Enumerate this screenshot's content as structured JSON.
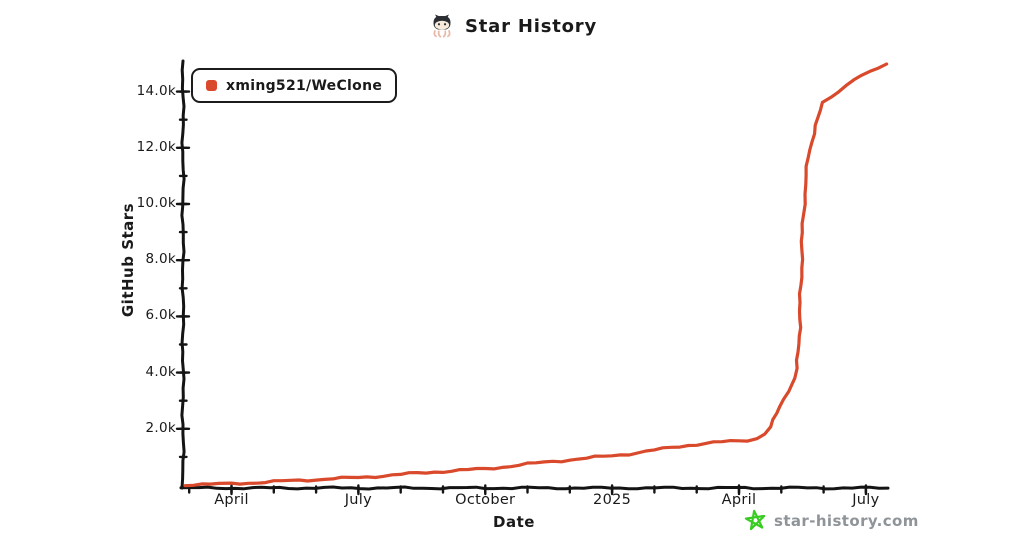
{
  "title": {
    "text": "Star History"
  },
  "legend": {
    "label": "xming521/WeClone",
    "marker_color": "#d9492b"
  },
  "watermark": {
    "text": "star-history.com",
    "icon_color": "#38cb22",
    "text_color": "#8f9499"
  },
  "chart_data": {
    "type": "line",
    "title": "Star History",
    "xlabel": "Date",
    "ylabel": "GitHub Stars",
    "legend_position": "top-left",
    "grid": false,
    "x_unit": "months since 2024-01-01",
    "x_domain_months": [
      1.9,
      18.5
    ],
    "y_domain": [
      0,
      15200
    ],
    "x_ticks": [
      {
        "label": "April",
        "month": 3
      },
      {
        "label": "July",
        "month": 6
      },
      {
        "label": "October",
        "month": 9
      },
      {
        "label": "2025",
        "month": 12
      },
      {
        "label": "April",
        "month": 15
      },
      {
        "label": "July",
        "month": 18
      }
    ],
    "y_ticks": [
      {
        "label": "2.0k",
        "value": 2000
      },
      {
        "label": "4.0k",
        "value": 4000
      },
      {
        "label": "6.0k",
        "value": 6000
      },
      {
        "label": "8.0k",
        "value": 8000
      },
      {
        "label": "10.0k",
        "value": 10000
      },
      {
        "label": "12.0k",
        "value": 12000
      },
      {
        "label": "14.0k",
        "value": 14000
      }
    ],
    "series": [
      {
        "name": "xming521/WeClone",
        "color": "#d9492b",
        "points": [
          [
            1.9,
            10
          ],
          [
            2.3,
            18
          ],
          [
            2.7,
            28
          ],
          [
            3.0,
            45
          ],
          [
            3.4,
            75
          ],
          [
            3.8,
            105
          ],
          [
            4.2,
            135
          ],
          [
            4.6,
            165
          ],
          [
            5.0,
            195
          ],
          [
            5.4,
            225
          ],
          [
            5.8,
            250
          ],
          [
            6.2,
            285
          ],
          [
            6.6,
            330
          ],
          [
            7.0,
            375
          ],
          [
            7.4,
            420
          ],
          [
            7.8,
            465
          ],
          [
            8.2,
            505
          ],
          [
            8.6,
            540
          ],
          [
            9.0,
            575
          ],
          [
            9.4,
            640
          ],
          [
            9.8,
            710
          ],
          [
            10.2,
            775
          ],
          [
            10.6,
            840
          ],
          [
            11.0,
            900
          ],
          [
            11.4,
            955
          ],
          [
            11.8,
            1010
          ],
          [
            12.2,
            1075
          ],
          [
            12.6,
            1150
          ],
          [
            13.0,
            1240
          ],
          [
            13.4,
            1330
          ],
          [
            13.8,
            1415
          ],
          [
            14.2,
            1480
          ],
          [
            14.6,
            1530
          ],
          [
            15.0,
            1570
          ],
          [
            15.2,
            1600
          ],
          [
            15.42,
            1660
          ],
          [
            15.6,
            1830
          ],
          [
            15.75,
            2070
          ],
          [
            15.9,
            2550
          ],
          [
            16.05,
            3050
          ],
          [
            16.15,
            3350
          ],
          [
            16.25,
            3600
          ],
          [
            16.32,
            3800
          ],
          [
            16.38,
            4150
          ],
          [
            16.43,
            5600
          ],
          [
            16.47,
            7400
          ],
          [
            16.51,
            9300
          ],
          [
            16.57,
            10700
          ],
          [
            16.64,
            11650
          ],
          [
            16.8,
            12800
          ],
          [
            17.0,
            13600
          ],
          [
            17.35,
            14000
          ],
          [
            17.7,
            14450
          ],
          [
            18.1,
            14700
          ],
          [
            18.5,
            14950
          ]
        ]
      }
    ]
  }
}
